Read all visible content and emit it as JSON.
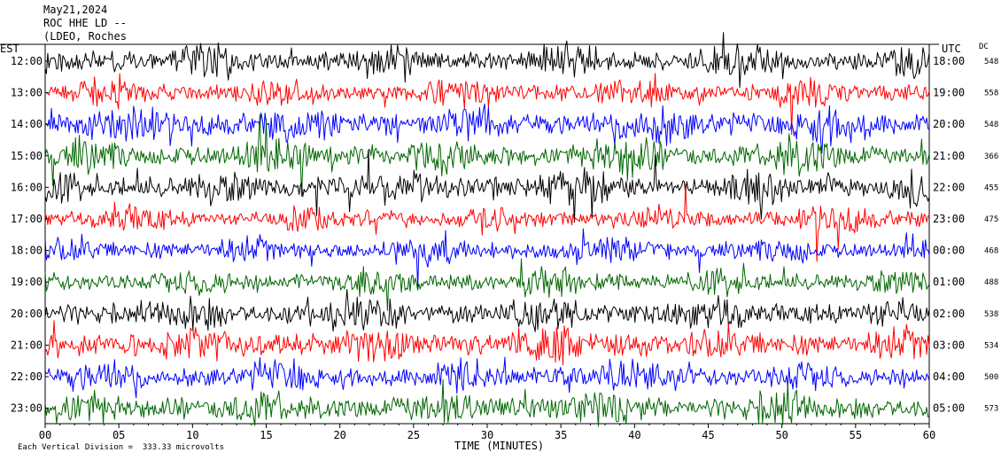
{
  "header": {
    "date": "May21,2024",
    "station": "ROC HHE LD --",
    "location": "(LDEO, Roches"
  },
  "axes": {
    "left_label": "EST",
    "right_label": "UTC",
    "dc_label": "DC",
    "xlabel": "TIME (MINUTES)",
    "footer": "Each Vertical Division =  333.33 microvolts"
  },
  "chart_data": {
    "type": "line",
    "title": "",
    "xlabel": "TIME (MINUTES)",
    "xlim": [
      0,
      60
    ],
    "x_ticks": [
      "00",
      "05",
      "10",
      "15",
      "20",
      "25",
      "30",
      "35",
      "40",
      "45",
      "50",
      "55",
      "60"
    ],
    "left_hours": [
      "12:00",
      "13:00",
      "14:00",
      "15:00",
      "16:00",
      "17:00",
      "18:00",
      "19:00",
      "20:00",
      "21:00",
      "22:00",
      "23:00"
    ],
    "right_hours": [
      "18:00",
      "19:00",
      "20:00",
      "21:00",
      "22:00",
      "23:00",
      "00:00",
      "01:00",
      "02:00",
      "03:00",
      "04:00",
      "05:00"
    ],
    "dc_values": [
      "548",
      "558",
      "548",
      "366",
      "455",
      "475",
      "468",
      "488",
      "538",
      "534",
      "500",
      "573"
    ],
    "trace_colors": [
      "#000000",
      "#ff0000",
      "#0000ff",
      "#006600"
    ]
  }
}
